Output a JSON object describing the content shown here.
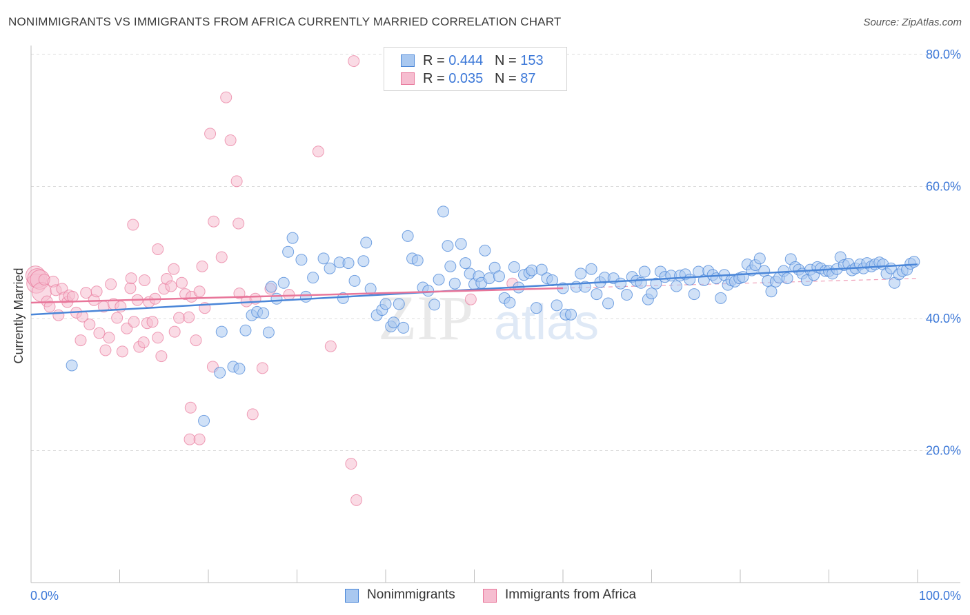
{
  "title": "NONIMMIGRANTS VS IMMIGRANTS FROM AFRICA CURRENTLY MARRIED CORRELATION CHART",
  "source": "Source: ZipAtlas.com",
  "colors": {
    "blue": "#4a86d8",
    "blue_fill": "#a9c8f0",
    "pink": "#e8769a",
    "pink_fill": "#f6bdd0",
    "axis_label": "#3c78d8"
  },
  "legend": {
    "rows": [
      {
        "r_label": "R = ",
        "r_value": "0.444",
        "n_label": "N = ",
        "n_value": "153"
      },
      {
        "r_label": "R = ",
        "r_value": "0.035",
        "n_label": "N = ",
        "n_value": "87"
      }
    ]
  },
  "bottom_legend": {
    "series1": "Nonimmigrants",
    "series2": "Immigrants from Africa"
  },
  "watermark": {
    "zip": "ZIP",
    "atlas": "atlas"
  },
  "chart_data": {
    "type": "scatter",
    "title": "NONIMMIGRANTS VS IMMIGRANTS FROM AFRICA CURRENTLY MARRIED CORRELATION CHART",
    "xlabel": "",
    "ylabel": "Currently Married",
    "xlim": [
      0,
      100
    ],
    "ylim": [
      0,
      80
    ],
    "x_tick_labels": [
      "0.0%",
      "100.0%"
    ],
    "y_ticks": [
      20,
      40,
      60,
      80
    ],
    "y_tick_labels": [
      "20.0%",
      "40.0%",
      "60.0%",
      "80.0%"
    ],
    "grid": "horizontal dashed",
    "legend_placement": "top-center",
    "series": [
      {
        "name": "Nonimmigrants",
        "color": "#4a86d8",
        "trend": {
          "x": [
            0,
            100
          ],
          "y": [
            40.6,
            48.2
          ]
        },
        "points": [
          [
            4.6,
            32.9
          ],
          [
            21.5,
            38.0
          ],
          [
            21.3,
            31.8
          ],
          [
            19.5,
            24.5
          ],
          [
            22.8,
            32.7
          ],
          [
            23.5,
            32.4
          ],
          [
            24.2,
            38.2
          ],
          [
            24.9,
            40.5
          ],
          [
            25.5,
            41.0
          ],
          [
            26.2,
            40.8
          ],
          [
            26.8,
            37.9
          ],
          [
            27.1,
            44.8
          ],
          [
            27.7,
            43.0
          ],
          [
            28.5,
            45.4
          ],
          [
            29.0,
            50.1
          ],
          [
            29.5,
            52.2
          ],
          [
            30.5,
            48.9
          ],
          [
            31.0,
            43.3
          ],
          [
            31.8,
            46.2
          ],
          [
            33.0,
            49.1
          ],
          [
            33.7,
            47.6
          ],
          [
            34.8,
            48.5
          ],
          [
            35.2,
            43.1
          ],
          [
            35.8,
            48.4
          ],
          [
            36.5,
            45.7
          ],
          [
            37.5,
            48.7
          ],
          [
            37.8,
            51.5
          ],
          [
            38.3,
            44.5
          ],
          [
            39.0,
            40.5
          ],
          [
            39.6,
            41.3
          ],
          [
            40.0,
            42.2
          ],
          [
            40.6,
            38.8
          ],
          [
            40.9,
            39.4
          ],
          [
            41.5,
            42.2
          ],
          [
            42.0,
            38.6
          ],
          [
            42.5,
            52.5
          ],
          [
            43.0,
            49.1
          ],
          [
            43.6,
            48.8
          ],
          [
            44.2,
            44.7
          ],
          [
            44.8,
            44.2
          ],
          [
            45.5,
            42.1
          ],
          [
            46.0,
            45.9
          ],
          [
            46.5,
            56.2
          ],
          [
            47.0,
            51.0
          ],
          [
            47.3,
            47.9
          ],
          [
            47.8,
            45.3
          ],
          [
            48.5,
            51.3
          ],
          [
            49.0,
            48.4
          ],
          [
            49.5,
            46.8
          ],
          [
            50.0,
            45.2
          ],
          [
            50.5,
            46.4
          ],
          [
            50.8,
            45.4
          ],
          [
            51.2,
            50.3
          ],
          [
            51.7,
            46.1
          ],
          [
            52.3,
            47.7
          ],
          [
            52.8,
            46.4
          ],
          [
            53.4,
            43.1
          ],
          [
            54.0,
            42.4
          ],
          [
            54.5,
            47.8
          ],
          [
            55.0,
            44.7
          ],
          [
            55.6,
            46.6
          ],
          [
            56.2,
            46.9
          ],
          [
            56.5,
            47.3
          ],
          [
            57.0,
            41.6
          ],
          [
            57.6,
            47.4
          ],
          [
            58.2,
            46.1
          ],
          [
            58.8,
            45.8
          ],
          [
            59.3,
            42.0
          ],
          [
            60.0,
            44.6
          ],
          [
            60.3,
            40.6
          ],
          [
            60.9,
            40.6
          ],
          [
            61.5,
            44.8
          ],
          [
            62.0,
            46.8
          ],
          [
            62.5,
            44.8
          ],
          [
            63.2,
            47.5
          ],
          [
            63.8,
            43.7
          ],
          [
            64.2,
            45.5
          ],
          [
            64.7,
            46.2
          ],
          [
            65.1,
            42.3
          ],
          [
            65.7,
            46.1
          ],
          [
            66.5,
            45.3
          ],
          [
            67.2,
            43.6
          ],
          [
            67.8,
            46.3
          ],
          [
            68.3,
            45.7
          ],
          [
            68.8,
            45.4
          ],
          [
            69.2,
            47.1
          ],
          [
            69.6,
            42.9
          ],
          [
            70.0,
            43.8
          ],
          [
            70.5,
            45.3
          ],
          [
            71.0,
            47.1
          ],
          [
            71.5,
            46.3
          ],
          [
            72.2,
            46.5
          ],
          [
            72.8,
            44.9
          ],
          [
            73.2,
            46.5
          ],
          [
            73.8,
            46.7
          ],
          [
            74.3,
            45.9
          ],
          [
            74.8,
            43.7
          ],
          [
            75.3,
            47.1
          ],
          [
            75.9,
            45.8
          ],
          [
            76.4,
            47.2
          ],
          [
            76.9,
            46.6
          ],
          [
            77.3,
            46.1
          ],
          [
            77.8,
            43.1
          ],
          [
            78.2,
            46.6
          ],
          [
            78.6,
            45.1
          ],
          [
            79.0,
            45.8
          ],
          [
            79.4,
            45.6
          ],
          [
            79.9,
            46.1
          ],
          [
            80.3,
            46.3
          ],
          [
            80.8,
            48.2
          ],
          [
            81.3,
            47.3
          ],
          [
            81.7,
            48.1
          ],
          [
            82.2,
            49.1
          ],
          [
            82.7,
            47.2
          ],
          [
            83.1,
            45.7
          ],
          [
            83.5,
            44.1
          ],
          [
            84.0,
            45.6
          ],
          [
            84.4,
            46.2
          ],
          [
            84.9,
            47.2
          ],
          [
            85.3,
            46.1
          ],
          [
            85.7,
            49.0
          ],
          [
            86.2,
            47.8
          ],
          [
            86.6,
            47.4
          ],
          [
            87.0,
            46.8
          ],
          [
            87.5,
            45.8
          ],
          [
            87.9,
            47.4
          ],
          [
            88.3,
            46.6
          ],
          [
            88.7,
            47.8
          ],
          [
            89.1,
            47.6
          ],
          [
            89.6,
            47.2
          ],
          [
            90.0,
            47.2
          ],
          [
            90.4,
            46.8
          ],
          [
            90.9,
            47.5
          ],
          [
            91.3,
            49.3
          ],
          [
            91.7,
            48.1
          ],
          [
            92.2,
            48.3
          ],
          [
            92.6,
            47.3
          ],
          [
            93.0,
            47.6
          ],
          [
            93.5,
            48.2
          ],
          [
            93.9,
            47.6
          ],
          [
            94.3,
            48.4
          ],
          [
            94.8,
            47.9
          ],
          [
            95.2,
            48.2
          ],
          [
            95.7,
            48.5
          ],
          [
            96.1,
            48.2
          ],
          [
            96.5,
            46.8
          ],
          [
            97.0,
            47.6
          ],
          [
            97.4,
            45.4
          ],
          [
            97.9,
            46.7
          ],
          [
            98.3,
            47.2
          ],
          [
            98.8,
            47.4
          ],
          [
            99.2,
            48.3
          ],
          [
            99.6,
            48.6
          ]
        ]
      },
      {
        "name": "Immigrants from Africa",
        "color": "#e8769a",
        "trend": {
          "x": [
            0,
            60
          ],
          "y": [
            42.4,
            44.6
          ]
        },
        "points": [
          [
            0.5,
            46.5
          ],
          [
            0.6,
            45.3
          ],
          [
            0.7,
            46.1
          ],
          [
            1.0,
            45.9
          ],
          [
            1.2,
            44.0
          ],
          [
            1.5,
            45.9
          ],
          [
            1.8,
            42.6
          ],
          [
            2.1,
            41.8
          ],
          [
            2.5,
            45.6
          ],
          [
            2.8,
            44.3
          ],
          [
            3.1,
            40.5
          ],
          [
            3.5,
            44.5
          ],
          [
            3.8,
            43.2
          ],
          [
            4.1,
            42.5
          ],
          [
            4.3,
            43.5
          ],
          [
            4.7,
            43.3
          ],
          [
            5.1,
            40.9
          ],
          [
            5.6,
            36.7
          ],
          [
            5.8,
            40.3
          ],
          [
            6.2,
            43.9
          ],
          [
            6.6,
            39.1
          ],
          [
            7.1,
            42.8
          ],
          [
            7.4,
            44.1
          ],
          [
            7.7,
            37.8
          ],
          [
            8.2,
            41.8
          ],
          [
            8.4,
            35.2
          ],
          [
            8.8,
            37.1
          ],
          [
            9.0,
            45.2
          ],
          [
            9.3,
            42.2
          ],
          [
            9.7,
            40.1
          ],
          [
            10.1,
            41.8
          ],
          [
            10.3,
            35.0
          ],
          [
            10.8,
            38.5
          ],
          [
            11.2,
            44.6
          ],
          [
            11.3,
            46.1
          ],
          [
            11.6,
            39.5
          ],
          [
            12.0,
            42.8
          ],
          [
            12.2,
            35.7
          ],
          [
            12.7,
            36.4
          ],
          [
            12.8,
            45.8
          ],
          [
            13.1,
            39.3
          ],
          [
            13.3,
            42.5
          ],
          [
            13.7,
            39.5
          ],
          [
            14.0,
            43.0
          ],
          [
            14.3,
            37.1
          ],
          [
            14.7,
            34.3
          ],
          [
            15.0,
            44.5
          ],
          [
            15.3,
            46.0
          ],
          [
            15.8,
            44.9
          ],
          [
            16.1,
            47.5
          ],
          [
            16.2,
            38.0
          ],
          [
            16.7,
            40.1
          ],
          [
            17.0,
            45.4
          ],
          [
            17.4,
            43.7
          ],
          [
            17.8,
            40.2
          ],
          [
            18.1,
            43.3
          ],
          [
            18.6,
            36.7
          ],
          [
            19.0,
            44.1
          ],
          [
            19.3,
            47.9
          ],
          [
            19.6,
            41.6
          ],
          [
            20.5,
            32.7
          ],
          [
            21.5,
            49.3
          ],
          [
            22.5,
            67.0
          ],
          [
            23.4,
            54.4
          ],
          [
            23.5,
            43.8
          ],
          [
            24.3,
            42.6
          ],
          [
            25.3,
            43.0
          ],
          [
            26.1,
            32.5
          ],
          [
            27.0,
            44.5
          ],
          [
            29.1,
            43.6
          ],
          [
            32.4,
            65.3
          ],
          [
            33.8,
            35.8
          ],
          [
            36.1,
            18.0
          ],
          [
            36.4,
            79.0
          ],
          [
            36.7,
            12.5
          ],
          [
            49.6,
            42.9
          ],
          [
            54.3,
            45.3
          ],
          [
            20.2,
            68.0
          ],
          [
            22.0,
            73.5
          ],
          [
            23.2,
            60.8
          ],
          [
            25.0,
            25.5
          ],
          [
            18.0,
            26.5
          ],
          [
            17.9,
            21.7
          ],
          [
            19.0,
            21.7
          ],
          [
            11.5,
            54.2
          ],
          [
            14.3,
            50.5
          ],
          [
            20.6,
            54.7
          ]
        ]
      }
    ]
  }
}
